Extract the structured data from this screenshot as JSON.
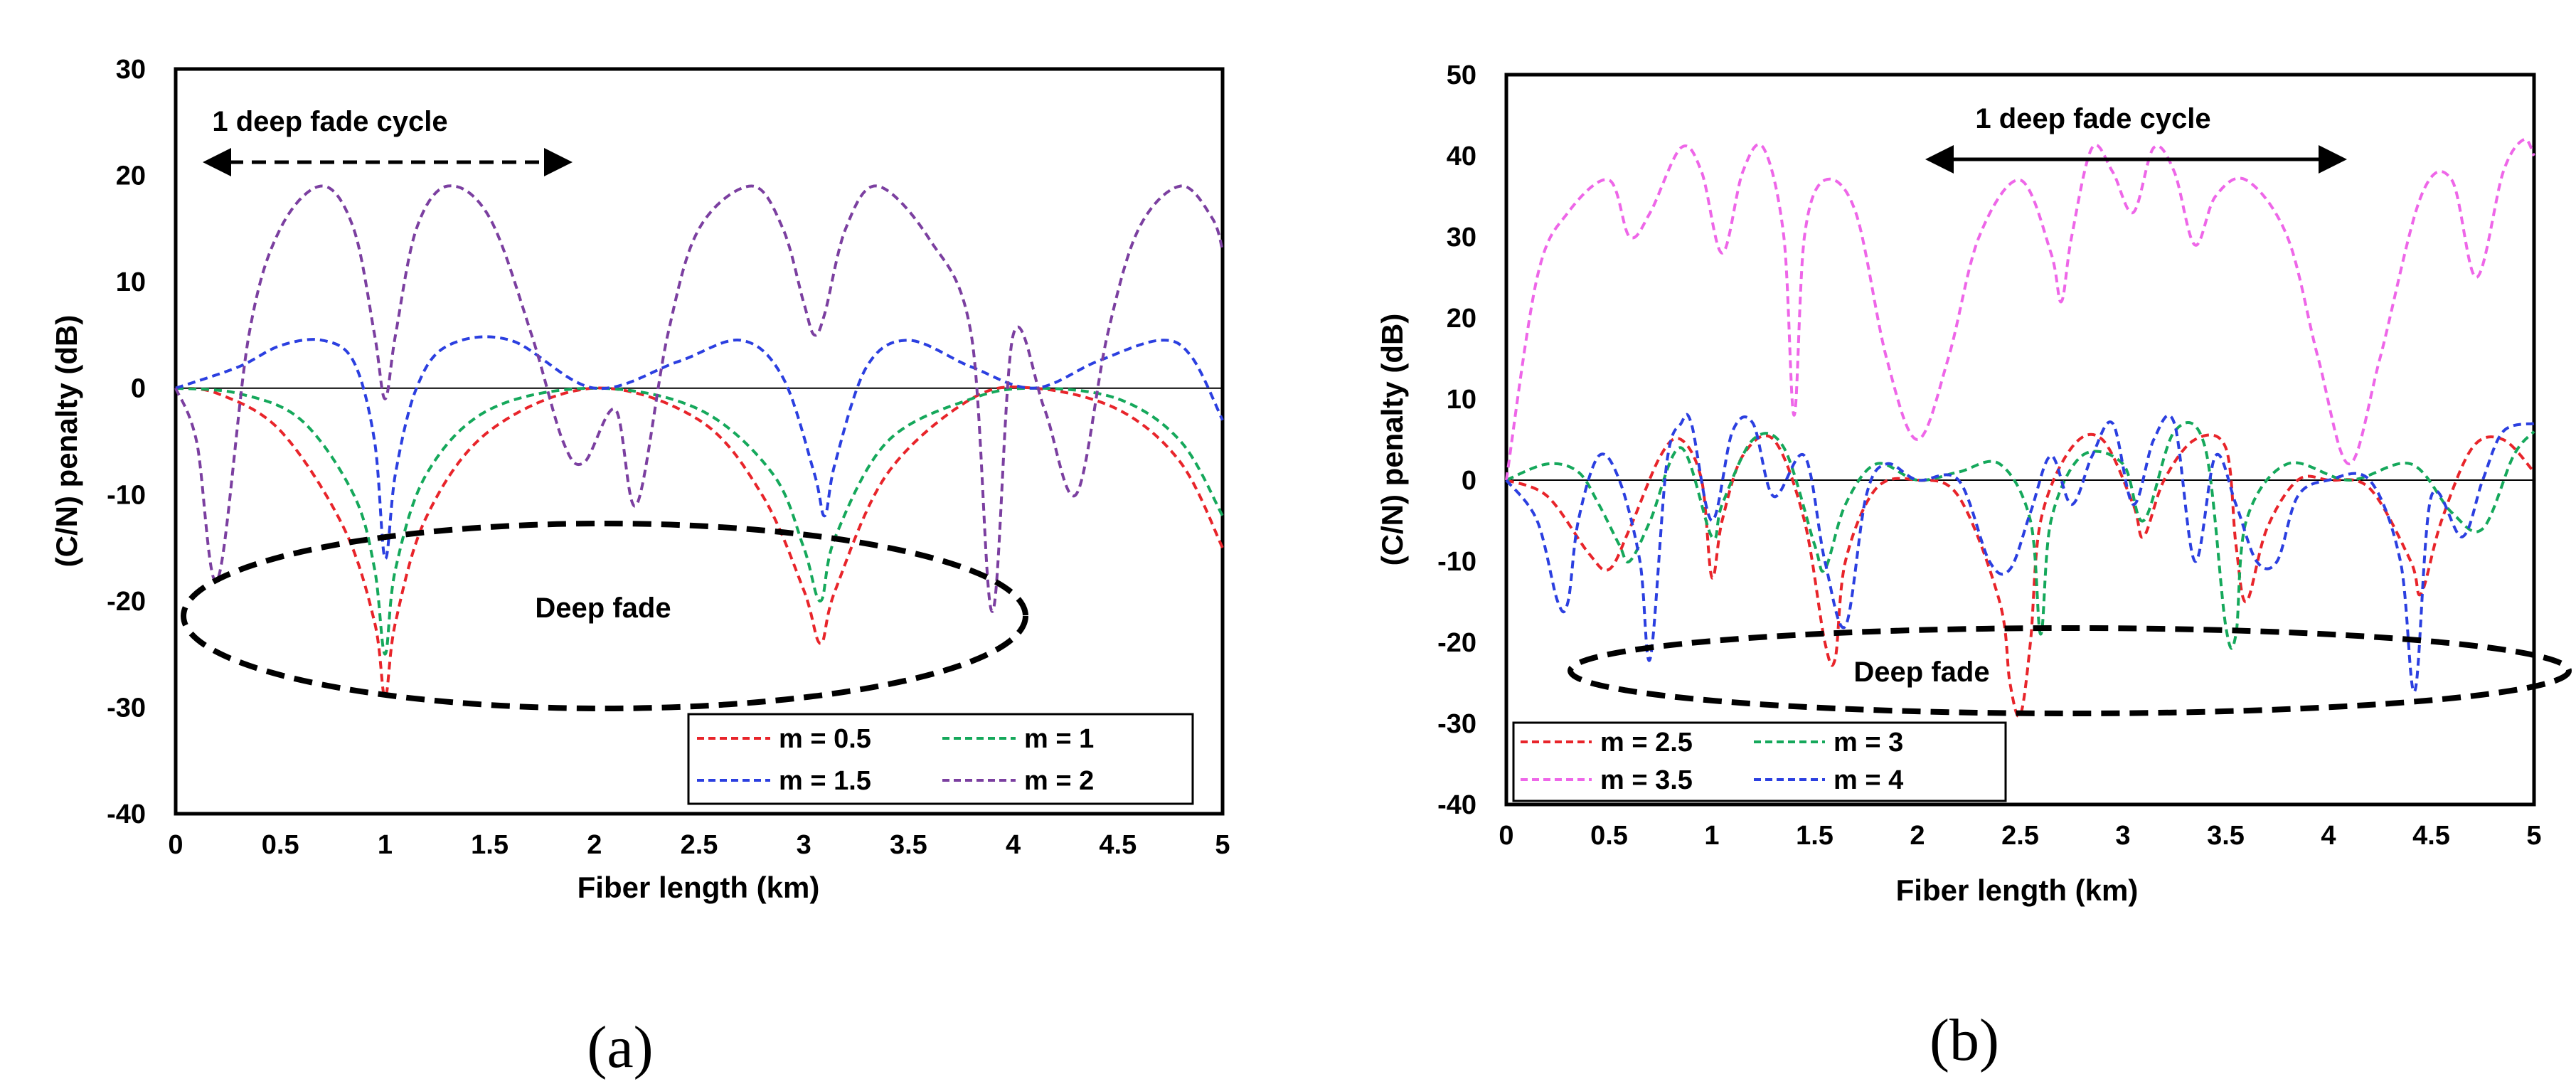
{
  "charts": [
    {
      "panel": "(a)",
      "type": "line",
      "xlabel": "Fiber length (km)",
      "ylabel": "(C/N) penalty (dB)",
      "xlim": [
        0,
        5
      ],
      "ylim": [
        -40,
        30
      ],
      "xticks": [
        "0",
        "0.5",
        "1",
        "1.5",
        "2",
        "2.5",
        "3",
        "3.5",
        "4",
        "4.5",
        "5"
      ],
      "yticks": [
        "30",
        "20",
        "10",
        "0",
        "-10",
        "-20",
        "-30",
        "-40"
      ],
      "annotations": {
        "cycle_label": "1 deep fade cycle",
        "fade_label": "Deep fade"
      },
      "legend": [
        "m = 0.5",
        "m = 1",
        "m = 1.5",
        "m = 2"
      ],
      "series": [
        {
          "name": "m = 0.5",
          "color": "#e8242a",
          "x": [
            0,
            0.2,
            0.5,
            0.8,
            0.95,
            1.0,
            1.05,
            1.2,
            1.5,
            2.0,
            2.5,
            2.8,
            3.0,
            3.08,
            3.15,
            3.4,
            3.8,
            4.1,
            4.5,
            4.8,
            5.0
          ],
          "y": [
            0,
            -0.5,
            -4,
            -13,
            -22,
            -29,
            -22,
            -12,
            -4,
            0,
            -3,
            -10,
            -19,
            -24,
            -19,
            -8,
            -1,
            0,
            -2,
            -7,
            -15
          ]
        },
        {
          "name": "m = 1",
          "color": "#15a85b",
          "x": [
            0,
            0.3,
            0.6,
            0.85,
            0.95,
            1.0,
            1.05,
            1.2,
            1.5,
            2.0,
            2.5,
            2.85,
            3.0,
            3.08,
            3.15,
            3.4,
            3.8,
            4.1,
            4.5,
            4.8,
            5.0
          ],
          "y": [
            0,
            -0.5,
            -3,
            -10,
            -17,
            -25,
            -17,
            -8,
            -2,
            0,
            -2,
            -8,
            -15,
            -20,
            -14,
            -5,
            -1,
            0,
            -1,
            -5,
            -12
          ]
        },
        {
          "name": "m = 1.5",
          "color": "#2b3fe0",
          "x": [
            0,
            0.3,
            0.5,
            0.7,
            0.85,
            0.95,
            1.0,
            1.05,
            1.15,
            1.3,
            1.6,
            2.0,
            2.4,
            2.7,
            2.9,
            3.05,
            3.1,
            3.15,
            3.3,
            3.5,
            3.8,
            4.1,
            4.4,
            4.7,
            4.85,
            5.0
          ],
          "y": [
            0,
            2,
            4,
            4.5,
            2.5,
            -5,
            -16,
            -8,
            0,
            4,
            4.5,
            0,
            2.5,
            4.5,
            1,
            -8,
            -12,
            -7,
            2,
            4.5,
            2,
            0,
            2.5,
            4.5,
            3,
            -3
          ]
        },
        {
          "name": "m = 2",
          "color": "#7b3fa0",
          "x": [
            0,
            0.1,
            0.2,
            0.35,
            0.5,
            0.7,
            0.85,
            0.95,
            1.0,
            1.05,
            1.15,
            1.3,
            1.5,
            1.7,
            1.85,
            1.95,
            2.1,
            2.2,
            2.35,
            2.5,
            2.75,
            2.9,
            3.0,
            3.05,
            3.1,
            3.2,
            3.35,
            3.6,
            3.8,
            3.9,
            4.0,
            4.15,
            4.3,
            4.45,
            4.6,
            4.8,
            4.95,
            5.0
          ],
          "y": [
            0,
            -5,
            -18,
            5,
            15,
            19,
            15,
            5,
            -1,
            5,
            15,
            19,
            16,
            5,
            -5,
            -7,
            -2,
            -11,
            5,
            15,
            19,
            15,
            8,
            5,
            7,
            15,
            19,
            14,
            5,
            -21,
            5,
            -2,
            -10,
            5,
            15,
            19,
            16,
            13
          ]
        }
      ]
    },
    {
      "panel": "(b)",
      "type": "line",
      "xlabel": "Fiber length (km)",
      "ylabel": "(C/N) penalty (dB)",
      "xlim": [
        0,
        5
      ],
      "ylim": [
        -40,
        50
      ],
      "xticks": [
        "0",
        "0.5",
        "1",
        "1.5",
        "2",
        "2.5",
        "3",
        "3.5",
        "4",
        "4.5",
        "5"
      ],
      "yticks": [
        "50",
        "40",
        "30",
        "20",
        "10",
        "0",
        "-10",
        "-20",
        "-30",
        "-40"
      ],
      "annotations": {
        "cycle_label": "1 deep fade cycle",
        "fade_label": "Deep fade"
      },
      "legend": [
        "m = 2.5",
        "m = 3",
        "m = 3.5",
        "m = 4"
      ],
      "series": [
        {
          "name": "m = 2.5",
          "color": "#e8242a",
          "x": [
            0,
            0.2,
            0.4,
            0.5,
            0.6,
            0.75,
            0.85,
            0.95,
            1.0,
            1.05,
            1.15,
            1.3,
            1.45,
            1.55,
            1.6,
            1.65,
            1.8,
            2.0,
            2.2,
            2.4,
            2.45,
            2.5,
            2.55,
            2.6,
            2.75,
            2.9,
            3.05,
            3.1,
            3.2,
            3.35,
            3.5,
            3.55,
            3.6,
            3.7,
            3.85,
            4.0,
            4.2,
            4.4,
            4.45,
            4.55,
            4.7,
            4.85,
            5.0
          ],
          "y": [
            0,
            -2,
            -9,
            -11,
            -6,
            3,
            5,
            0,
            -12,
            -5,
            3,
            5,
            -5,
            -20,
            -22,
            -10,
            -1,
            0,
            -2,
            -15,
            -25,
            -29,
            -20,
            -5,
            4,
            5,
            -3,
            -7,
            0,
            5,
            4,
            -8,
            -15,
            -6,
            0,
            0,
            -1,
            -10,
            -14,
            -5,
            4,
            5,
            1
          ]
        },
        {
          "name": "m = 3",
          "color": "#15a85b",
          "x": [
            0,
            0.2,
            0.35,
            0.45,
            0.55,
            0.6,
            0.7,
            0.85,
            1.0,
            1.05,
            1.2,
            1.35,
            1.5,
            1.55,
            1.65,
            1.8,
            2.0,
            2.2,
            2.4,
            2.55,
            2.6,
            2.65,
            2.8,
            3.0,
            3.1,
            3.25,
            3.4,
            3.5,
            3.55,
            3.6,
            3.8,
            4.1,
            4.4,
            4.6,
            4.75,
            4.9,
            5.0
          ],
          "y": [
            0,
            2,
            1,
            -3,
            -8,
            -10,
            -5,
            4,
            -7,
            -3,
            5,
            4,
            -8,
            -11,
            -3,
            2,
            0,
            1,
            2,
            -5,
            -19,
            -5,
            3,
            2,
            -5,
            6,
            4,
            -18,
            -19,
            -5,
            2,
            0,
            2,
            -4,
            -6,
            3,
            6
          ]
        },
        {
          "name": "m = 3.5",
          "color": "#ee66e8",
          "x": [
            0,
            0.15,
            0.3,
            0.5,
            0.6,
            0.7,
            0.85,
            0.95,
            1.05,
            1.15,
            1.25,
            1.35,
            1.4,
            1.45,
            1.55,
            1.7,
            1.85,
            2.0,
            2.15,
            2.3,
            2.5,
            2.65,
            2.7,
            2.75,
            2.85,
            2.95,
            3.05,
            3.15,
            3.25,
            3.35,
            3.45,
            3.6,
            3.8,
            3.95,
            4.1,
            4.25,
            4.45,
            4.6,
            4.72,
            4.85,
            4.95,
            5.0
          ],
          "y": [
            0,
            25,
            33,
            37,
            30,
            33,
            41,
            38,
            28,
            38,
            41,
            30,
            8,
            30,
            37,
            33,
            15,
            5,
            15,
            30,
            37,
            28,
            22,
            30,
            41,
            38,
            33,
            41,
            38,
            29,
            35,
            37,
            30,
            15,
            2,
            15,
            35,
            37,
            25,
            38,
            42,
            40
          ]
        },
        {
          "name": "m = 4",
          "color": "#2b3fe0",
          "x": [
            0,
            0.15,
            0.25,
            0.3,
            0.35,
            0.45,
            0.55,
            0.65,
            0.7,
            0.78,
            0.85,
            0.9,
            1.0,
            1.1,
            1.2,
            1.3,
            1.45,
            1.55,
            1.65,
            1.75,
            1.85,
            2.0,
            2.2,
            2.35,
            2.45,
            2.55,
            2.65,
            2.75,
            2.85,
            2.95,
            3.05,
            3.15,
            3.25,
            3.35,
            3.45,
            3.55,
            3.65,
            3.75,
            3.85,
            4.0,
            4.2,
            4.35,
            4.42,
            4.5,
            4.65,
            4.75,
            4.85,
            5.0
          ],
          "y": [
            0,
            -5,
            -15,
            -15,
            -5,
            3,
            0,
            -10,
            -22,
            2,
            7,
            7,
            -5,
            6,
            7,
            -2,
            3,
            -10,
            -18,
            -2,
            2,
            0,
            0,
            -10,
            -11,
            -4,
            3,
            -3,
            3,
            7,
            -3,
            5,
            7,
            -10,
            3,
            -3,
            -10,
            -10,
            -2,
            0,
            0,
            -10,
            -26,
            -2,
            -7,
            0,
            6,
            7
          ]
        }
      ]
    }
  ]
}
